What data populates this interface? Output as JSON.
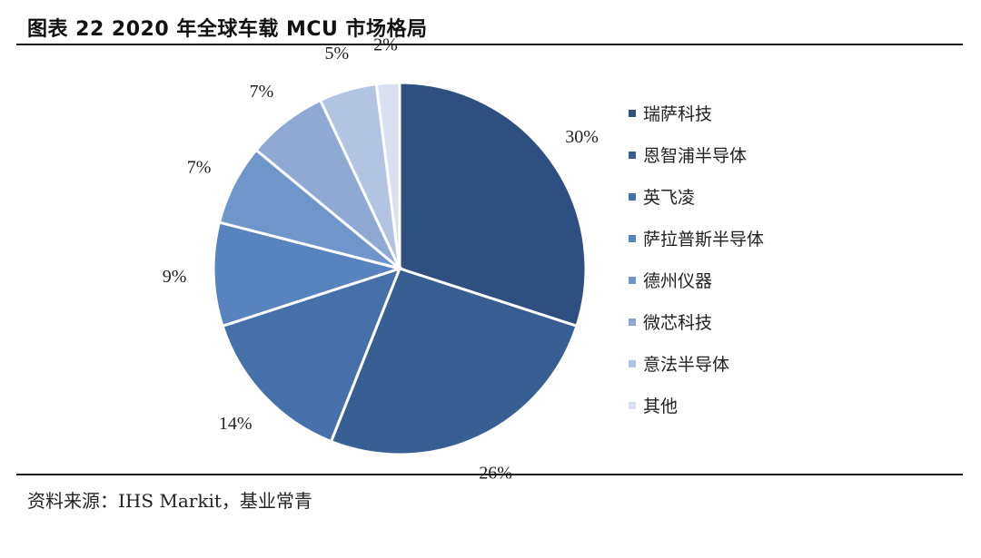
{
  "figure": {
    "title": "图表 22 2020 年全球车载 MCU 市场格局",
    "source": "资料来源：IHS Markit，基业常青"
  },
  "chart_data": {
    "type": "pie",
    "title": "图表 22 2020 年全球车载 MCU 市场格局",
    "labels": [
      "瑞萨科技",
      "恩智浦半导体",
      "英飞凌",
      "萨拉普斯半导体",
      "德州仪器",
      "微芯科技",
      "意法半导体",
      "其他"
    ],
    "values": [
      30,
      26,
      14,
      9,
      7,
      7,
      5,
      2
    ],
    "value_labels": [
      "30%",
      "26%",
      "14%",
      "9%",
      "7%",
      "7%",
      "5%",
      "2%"
    ],
    "colors": [
      "#2e5080",
      "#385f94",
      "#4570aa",
      "#5784bf",
      "#6f96cb",
      "#8ea9d4",
      "#b3c3e2",
      "#d9e1f0"
    ],
    "legend_position": "right"
  }
}
